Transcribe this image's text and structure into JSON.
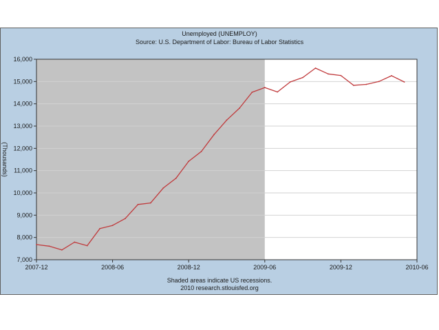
{
  "chart_data": {
    "type": "line",
    "title": "Unemployed (UNEMPLOY)",
    "subtitle": "Source: U.S. Department of Labor: Bureau of Labor Statistics",
    "ylabel": "(Thousands)",
    "footer_lines": [
      "Shaded areas indicate US recessions.",
      "2010 research.stlouisfed.org"
    ],
    "x_tick_labels": [
      "2007-12",
      "2008-06",
      "2008-12",
      "2009-06",
      "2009-12",
      "2010-06"
    ],
    "y_tick_labels": [
      "7,000",
      "8,000",
      "9,000",
      "10,000",
      "11,000",
      "12,000",
      "13,000",
      "14,000",
      "15,000",
      "16,000"
    ],
    "ylim": [
      7000,
      16000
    ],
    "grid": true,
    "recession_shading": {
      "start": "2007-12",
      "end": "2009-06"
    },
    "line_color": "#c0393b",
    "series": [
      {
        "x": [
          "2007-12",
          "2008-01",
          "2008-02",
          "2008-03",
          "2008-04",
          "2008-05",
          "2008-06",
          "2008-07",
          "2008-08",
          "2008-09",
          "2008-10",
          "2008-11",
          "2008-12",
          "2009-01",
          "2009-02",
          "2009-03",
          "2009-04",
          "2009-05",
          "2009-06",
          "2009-07",
          "2009-08",
          "2009-09",
          "2009-10",
          "2009-11",
          "2009-12",
          "2010-01",
          "2010-02",
          "2010-03",
          "2010-04",
          "2010-05"
        ],
        "values": [
          7680,
          7610,
          7440,
          7790,
          7630,
          8400,
          8540,
          8850,
          9480,
          9550,
          10220,
          10660,
          11420,
          11860,
          12620,
          13270,
          13800,
          14520,
          14730,
          14530,
          14980,
          15180,
          15600,
          15340,
          15270,
          14830,
          14870,
          15000,
          15260,
          14980
        ]
      }
    ]
  }
}
